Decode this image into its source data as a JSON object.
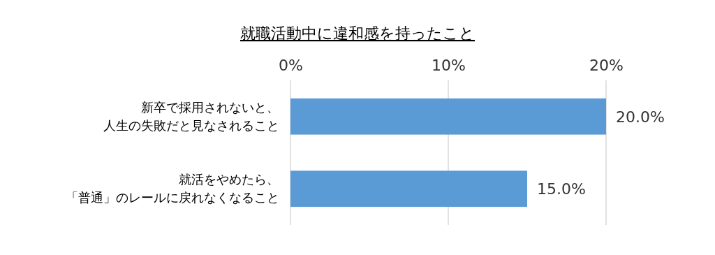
{
  "chart_data": {
    "type": "bar",
    "orientation": "horizontal",
    "title": "就職活動中に違和感を持ったこと",
    "categories": [
      "新卒で採用されないと、人生の失敗だと見なされること",
      "就活をやめたら、「普通」のレールに戻れなくなること"
    ],
    "values": [
      20.0,
      15.0
    ],
    "value_labels": [
      "20.0%",
      "15.0%"
    ],
    "color": "#5b9bd5",
    "xlim": [
      0,
      20
    ],
    "xticks": [
      {
        "value": 0,
        "label": "0%"
      },
      {
        "value": 10,
        "label": "10%"
      },
      {
        "value": 20,
        "label": "20%"
      }
    ],
    "grid": "x"
  }
}
